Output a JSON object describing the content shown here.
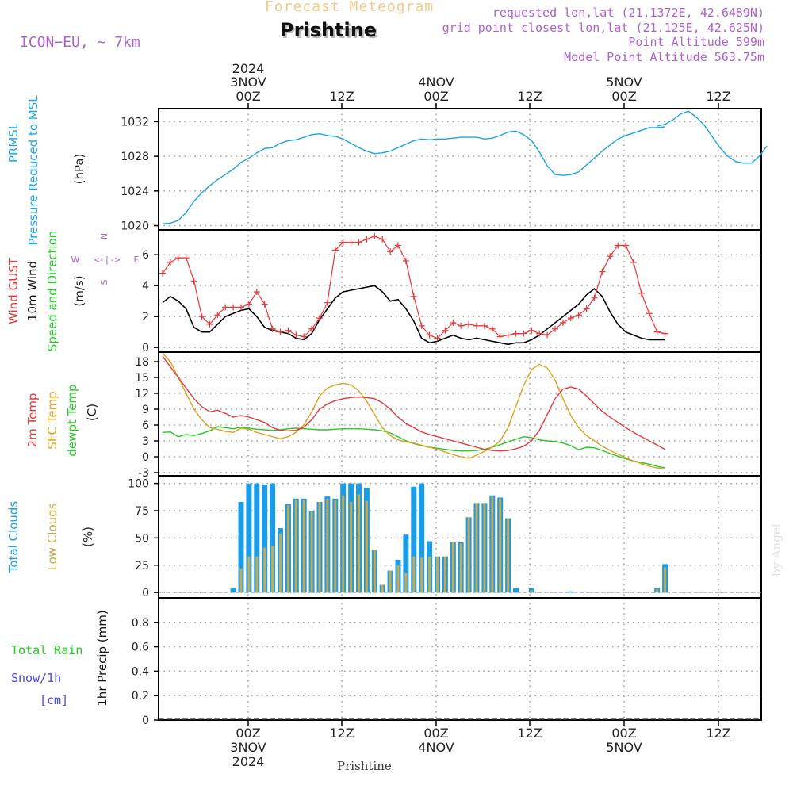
{
  "header": {
    "forecast_title": "Forecast Meteogram",
    "station": "Prishtine",
    "model": "ICON−EU, ~ 7km",
    "requested": "requested lon,lat (21.1372E, 42.6489N)",
    "gridpoint": "grid point closest lon,lat (21.125E, 42.625N)",
    "altitude": "Point Altitude 599m",
    "model_altitude": "Model Point Altitude 563.75m"
  },
  "footer": {
    "station": "Prishtine"
  },
  "watermark": "by Angel",
  "colors": {
    "pressure": "#1aa3e8",
    "gust": "#e8383a",
    "wind": "#000000",
    "wind_label_green": "#22cc22",
    "temp": "#e8383a",
    "sfc": "#e0a020",
    "dewpt": "#22cc22",
    "total_clouds": "#1a9ce8",
    "low_clouds": "#c9a94a",
    "rain": "#22cc22",
    "snow": "#4a4ae8",
    "compass": "#b05fd6"
  },
  "chart_data": {
    "type": "line",
    "time_axis": {
      "start": "2024-11-02 13Z",
      "step_hours": 1,
      "count": 65,
      "top_labels": [
        {
          "line1": "2024",
          "line2": "3NOV",
          "line3": "00Z"
        },
        {
          "line1": "",
          "line2": "",
          "line3": "12Z"
        },
        {
          "line1": "",
          "line2": "4NOV",
          "line3": "00Z"
        },
        {
          "line1": "",
          "line2": "",
          "line3": "12Z"
        },
        {
          "line1": "",
          "line2": "5NOV",
          "line3": "00Z"
        },
        {
          "line1": "",
          "line2": "",
          "line3": "12Z"
        }
      ],
      "bottom_labels": [
        {
          "line1": "00Z",
          "line2": "3NOV",
          "line3": "2024"
        },
        {
          "line1": "12Z",
          "line2": "",
          "line3": ""
        },
        {
          "line1": "00Z",
          "line2": "4NOV",
          "line3": ""
        },
        {
          "line1": "12Z",
          "line2": "",
          "line3": ""
        },
        {
          "line1": "00Z",
          "line2": "5NOV",
          "line3": ""
        },
        {
          "line1": "12Z",
          "line2": "",
          "line3": ""
        }
      ]
    },
    "panels": [
      {
        "id": "pressure",
        "type": "line",
        "label_lines": [
          "PRMSL",
          "Pressure Reduced to MSL"
        ],
        "unit": "(hPa)",
        "ylim": [
          1019.5,
          1033.5
        ],
        "yticks": [
          1020,
          1024,
          1028,
          1032
        ],
        "series": [
          {
            "values": [
              1020.2,
              1020.3,
              1020.6,
              1021.5,
              1022.8,
              1023.8,
              1024.6,
              1025.3,
              1025.9,
              1026.5,
              1027.3,
              1027.8,
              1028.4,
              1028.9,
              1029.0,
              1029.5,
              1029.8,
              1029.9,
              1030.2,
              1030.5,
              1030.6,
              1030.4,
              1030.3,
              1030.0,
              1029.5,
              1029.0,
              1028.6,
              1028.3,
              1028.4,
              1028.6,
              1029.0,
              1029.4,
              1029.8,
              1030.0,
              1029.9,
              1030.0,
              1030.0,
              1030.1,
              1030.2,
              1030.2,
              1030.2,
              1030.0,
              1030.1,
              1030.4,
              1030.8,
              1030.9,
              1030.5,
              1029.8,
              1028.5,
              1026.9,
              1025.9,
              1025.8,
              1025.9,
              1026.2,
              1027.0,
              1027.8,
              1028.6,
              1029.3,
              1030.0,
              1030.4,
              1030.7,
              1031.0,
              1031.3,
              1031.3,
              1031.4
            ]
          },
          {
            "values": [
              1031.5,
              1031.7,
              1032.2,
              1032.9,
              1033.2,
              1032.5,
              1031.6,
              1030.3,
              1029.0,
              1028.0,
              1027.4,
              1027.2,
              1027.2,
              1028.0,
              1029.2
            ]
          }
        ]
      },
      {
        "id": "wind",
        "type": "line",
        "label_lines": [
          "Wind GUST",
          "10m Wind",
          "Speed and Direction"
        ],
        "unit": "(m/s)",
        "ylim": [
          -0.3,
          7.6
        ],
        "yticks": [
          0,
          2,
          4,
          6
        ],
        "compass": {
          "n": "N",
          "s": "S",
          "w": "W",
          "e": "E",
          "arrow": "<-|->"
        },
        "series": [
          {
            "name": "Wind GUST",
            "values": [
              4.8,
              5.5,
              5.8,
              5.8,
              4.3,
              2.0,
              1.5,
              2.1,
              2.6,
              2.6,
              2.6,
              2.8,
              3.6,
              2.8,
              1.2,
              1.0,
              1.1,
              0.8,
              0.7,
              1.2,
              1.9,
              2.9,
              6.3,
              6.8,
              6.8,
              6.8,
              7.0,
              7.2,
              7.0,
              6.2,
              6.6,
              5.6,
              3.3,
              1.4,
              0.8,
              0.6,
              1.1,
              1.6,
              1.4,
              1.5,
              1.4,
              1.4,
              1.2,
              0.7,
              0.8,
              0.9,
              0.9,
              1.1,
              0.9,
              0.8,
              1.2,
              1.6,
              1.9,
              2.1,
              2.5,
              3.2,
              4.9,
              5.9,
              6.6,
              6.6,
              5.5,
              3.5,
              2.2,
              1.0,
              0.9
            ]
          },
          {
            "name": "10m Wind",
            "values": [
              2.9,
              3.3,
              3.0,
              2.5,
              1.3,
              1.0,
              1.0,
              1.5,
              2.0,
              2.2,
              2.4,
              2.5,
              2.0,
              1.3,
              1.1,
              1.0,
              0.9,
              0.6,
              0.5,
              0.9,
              1.8,
              2.5,
              3.2,
              3.6,
              3.7,
              3.8,
              3.9,
              4.0,
              3.6,
              3.0,
              3.1,
              2.5,
              1.7,
              0.6,
              0.3,
              0.4,
              0.6,
              0.8,
              0.6,
              0.5,
              0.6,
              0.5,
              0.4,
              0.3,
              0.2,
              0.3,
              0.3,
              0.5,
              0.8,
              1.2,
              1.6,
              2.0,
              2.4,
              2.8,
              3.4,
              3.8,
              3.3,
              2.3,
              1.5,
              1.0,
              0.8,
              0.6,
              0.5,
              0.5,
              0.5
            ]
          }
        ]
      },
      {
        "id": "temp",
        "type": "line",
        "label_lines": [
          "2m Temp",
          "SFC Temp",
          "dewpt Temp"
        ],
        "unit": "(C)",
        "ylim": [
          -3.6,
          19.8
        ],
        "yticks": [
          -3,
          0,
          3,
          6,
          9,
          12,
          15,
          18
        ],
        "series": [
          {
            "name": "2m Temp",
            "values": [
              19.0,
              17.0,
              15.0,
              13.0,
              11.0,
              9.5,
              8.5,
              8.8,
              8.2,
              7.5,
              7.8,
              7.5,
              7.0,
              6.5,
              5.5,
              5.0,
              4.9,
              5.0,
              5.6,
              7.0,
              9.0,
              10.0,
              10.6,
              11.0,
              11.2,
              11.3,
              11.2,
              11.0,
              10.2,
              9.0,
              7.5,
              6.3,
              5.5,
              4.7,
              4.2,
              3.8,
              3.4,
              3.0,
              2.6,
              2.2,
              1.8,
              1.4,
              1.2,
              1.1,
              1.2,
              1.5,
              2.0,
              3.0,
              5.0,
              8.0,
              11.0,
              12.8,
              13.2,
              12.8,
              11.5,
              10.0,
              8.6,
              7.5,
              6.5,
              5.5,
              4.6,
              3.8,
              3.0,
              2.2,
              1.4
            ]
          },
          {
            "name": "SFC Temp",
            "values": [
              19.6,
              18.0,
              15.0,
              12.0,
              9.0,
              7.0,
              5.5,
              5.2,
              4.8,
              4.6,
              5.4,
              5.2,
              4.6,
              4.2,
              3.8,
              3.4,
              3.8,
              4.6,
              6.0,
              8.5,
              11.5,
              13.0,
              13.6,
              13.9,
              13.6,
              12.5,
              10.5,
              8.0,
              5.5,
              4.0,
              3.2,
              2.8,
              2.6,
              2.2,
              1.8,
              1.4,
              0.9,
              0.4,
              0.0,
              -0.3,
              0.3,
              1.0,
              1.8,
              3.0,
              5.5,
              9.5,
              13.5,
              16.5,
              17.5,
              16.8,
              14.5,
              11.0,
              7.8,
              5.5,
              4.0,
              3.0,
              2.0,
              1.2,
              0.5,
              -0.2,
              -0.8,
              -1.3,
              -1.8,
              -2.1,
              -2.3
            ]
          },
          {
            "name": "dewpt Temp",
            "values": [
              4.6,
              4.7,
              3.8,
              4.2,
              4.0,
              4.4,
              4.9,
              5.7,
              5.5,
              5.3,
              5.6,
              5.4,
              5.2,
              5.1,
              5.0,
              5.1,
              5.3,
              5.4,
              5.3,
              5.2,
              5.1,
              5.1,
              5.2,
              5.3,
              5.3,
              5.3,
              5.2,
              5.1,
              4.9,
              4.5,
              3.8,
              3.0,
              2.5,
              2.1,
              1.8,
              1.6,
              1.4,
              1.2,
              1.1,
              1.1,
              1.2,
              1.4,
              1.8,
              2.3,
              2.8,
              3.3,
              3.8,
              3.6,
              3.2,
              3.0,
              2.9,
              2.6,
              2.1,
              1.3,
              1.8,
              1.7,
              1.2,
              0.6,
              0.1,
              -0.4,
              -0.8,
              -1.1,
              -1.4,
              -1.8,
              -2.1
            ]
          }
        ]
      },
      {
        "id": "clouds",
        "type": "bar",
        "label_lines": [
          "Total Clouds",
          "Low Clouds"
        ],
        "unit": "(%)",
        "ylim": [
          -5,
          107
        ],
        "yticks": [
          0,
          25,
          50,
          75,
          100
        ],
        "series": [
          {
            "name": "Total Clouds",
            "values": [
              0,
              0,
              0,
              0,
              0,
              0,
              0,
              0,
              0,
              4,
              83,
              100,
              100,
              99,
              100,
              59,
              81,
              86,
              86,
              75,
              83,
              88,
              86,
              100,
              100,
              100,
              96,
              39,
              7,
              20,
              30,
              53,
              97,
              100,
              47,
              33,
              33,
              46,
              46,
              69,
              82,
              82,
              89,
              87,
              68,
              4,
              0,
              4,
              0,
              0,
              0,
              0,
              1,
              0,
              0,
              0,
              0,
              0,
              0,
              0,
              0,
              0,
              0,
              4,
              26
            ]
          },
          {
            "name": "Low Clouds",
            "values": [
              0,
              0,
              0,
              0,
              0,
              0,
              0,
              0,
              0,
              0,
              22,
              33,
              33,
              41,
              43,
              54,
              80,
              85,
              85,
              74,
              83,
              86,
              85,
              89,
              83,
              90,
              84,
              39,
              7,
              20,
              25,
              18,
              33,
              32,
              33,
              33,
              33,
              46,
              45,
              69,
              82,
              82,
              88,
              86,
              68,
              0,
              0,
              2,
              0,
              0,
              0,
              0,
              0,
              0,
              0,
              0,
              0,
              0,
              0,
              0,
              0,
              0,
              0,
              3,
              23
            ]
          }
        ]
      },
      {
        "id": "precip",
        "type": "bar",
        "label_lines": [
          "1hr Precip (mm)"
        ],
        "unit": "",
        "legend_lines": [
          "Total  Rain",
          "Snow/1h",
          "[cm]"
        ],
        "ylim": [
          0,
          1
        ],
        "yticks": [
          0,
          0.2,
          0.4,
          0.6,
          0.8
        ],
        "series": [
          {
            "name": "Total Rain",
            "values": []
          }
        ]
      }
    ]
  }
}
